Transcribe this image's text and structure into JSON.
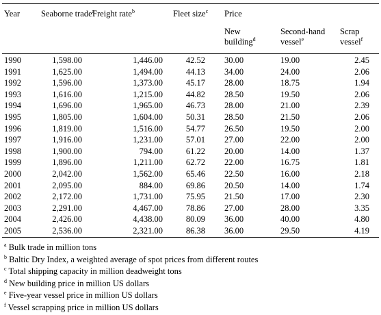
{
  "table": {
    "columns": [
      {
        "label": "Year"
      },
      {
        "label": "Seaborne trade",
        "note": "a"
      },
      {
        "label": "Freight rate",
        "note": "b"
      },
      {
        "label": "Fleet size",
        "note": "c"
      },
      {
        "label": "New building",
        "note": "d"
      },
      {
        "label": "Second-hand vessel",
        "note": "e"
      },
      {
        "label": "Scrap vessel",
        "note": "f"
      }
    ],
    "group": "Price",
    "rows": [
      [
        "1990",
        "1,598.00",
        "1,446.00",
        "42.52",
        "30.00",
        "19.00",
        "2.45"
      ],
      [
        "1991",
        "1,625.00",
        "1,494.00",
        "44.13",
        "34.00",
        "24.00",
        "2.06"
      ],
      [
        "1992",
        "1,596.00",
        "1,373.00",
        "45.17",
        "28.00",
        "18.75",
        "1.94"
      ],
      [
        "1993",
        "1,616.00",
        "1,215.00",
        "44.82",
        "28.50",
        "19.50",
        "2.06"
      ],
      [
        "1994",
        "1,696.00",
        "1,965.00",
        "46.73",
        "28.00",
        "21.00",
        "2.39"
      ],
      [
        "1995",
        "1,805.00",
        "1,604.00",
        "50.31",
        "28.50",
        "21.50",
        "2.06"
      ],
      [
        "1996",
        "1,819.00",
        "1,516.00",
        "54.77",
        "26.50",
        "19.50",
        "2.00"
      ],
      [
        "1997",
        "1,916.00",
        "1,231.00",
        "57.01",
        "27.00",
        "22.00",
        "2.00"
      ],
      [
        "1998",
        "1,900.00",
        "794.00",
        "61.22",
        "20.00",
        "14.00",
        "1.37"
      ],
      [
        "1999",
        "1,896.00",
        "1,211.00",
        "62.72",
        "22.00",
        "16.75",
        "1.81"
      ],
      [
        "2000",
        "2,042.00",
        "1,562.00",
        "65.46",
        "22.50",
        "16.00",
        "2.18"
      ],
      [
        "2001",
        "2,095.00",
        "884.00",
        "69.86",
        "20.50",
        "14.00",
        "1.74"
      ],
      [
        "2002",
        "2,172.00",
        "1,731.00",
        "75.95",
        "21.50",
        "17.00",
        "2.30"
      ],
      [
        "2003",
        "2,291.00",
        "4,467.00",
        "78.86",
        "27.00",
        "28.00",
        "3.35"
      ],
      [
        "2004",
        "2,426.00",
        "4,438.00",
        "80.09",
        "36.00",
        "40.00",
        "4.80"
      ],
      [
        "2005",
        "2,536.00",
        "2,321.00",
        "86.38",
        "36.00",
        "29.50",
        "4.19"
      ]
    ],
    "footnotes": [
      {
        "mark": "a",
        "text": "Bulk trade in million tons"
      },
      {
        "mark": "b",
        "text": "Baltic Dry Index, a weighted average of spot prices from different routes"
      },
      {
        "mark": "c",
        "text": "Total shipping capacity in million deadweight tons"
      },
      {
        "mark": "d",
        "text": "New building price in million US dollars"
      },
      {
        "mark": "e",
        "text": "Five-year vessel price in million US dollars"
      },
      {
        "mark": "f",
        "text": "Vessel scrapping price in million US dollars"
      }
    ]
  }
}
